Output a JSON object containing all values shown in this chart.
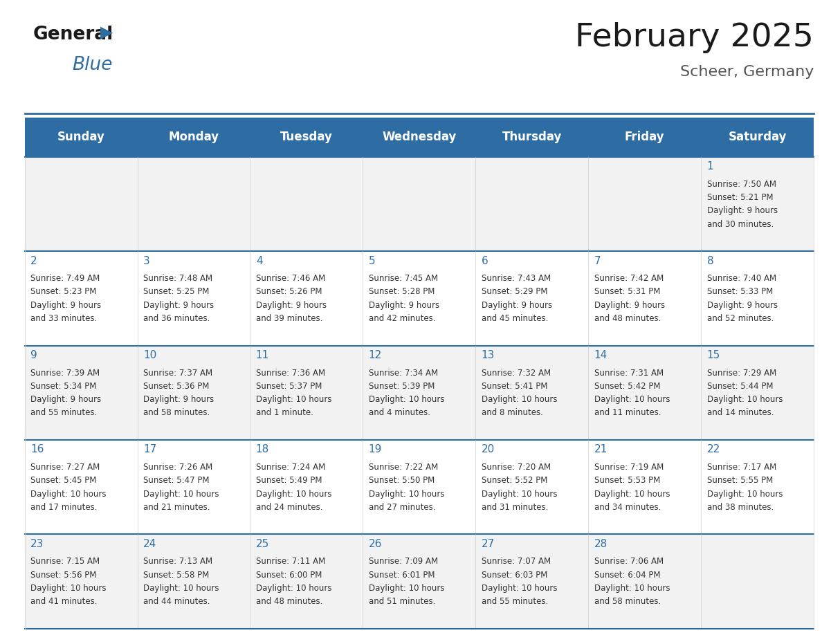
{
  "title": "February 2025",
  "subtitle": "Scheer, Germany",
  "header_bg": "#2E6DA4",
  "header_text_color": "#FFFFFF",
  "days_of_week": [
    "Sunday",
    "Monday",
    "Tuesday",
    "Wednesday",
    "Thursday",
    "Friday",
    "Saturday"
  ],
  "row_bg_odd": "#F2F2F2",
  "row_bg_even": "#FFFFFF",
  "cell_border_color": "#2E6DA4",
  "day_number_color": "#2E6DA4",
  "text_color": "#333333",
  "calendar": [
    [
      {
        "day": null,
        "sunrise": null,
        "sunset": null,
        "daylight": null
      },
      {
        "day": null,
        "sunrise": null,
        "sunset": null,
        "daylight": null
      },
      {
        "day": null,
        "sunrise": null,
        "sunset": null,
        "daylight": null
      },
      {
        "day": null,
        "sunrise": null,
        "sunset": null,
        "daylight": null
      },
      {
        "day": null,
        "sunrise": null,
        "sunset": null,
        "daylight": null
      },
      {
        "day": null,
        "sunrise": null,
        "sunset": null,
        "daylight": null
      },
      {
        "day": 1,
        "sunrise": "7:50 AM",
        "sunset": "5:21 PM",
        "daylight": "9 hours\nand 30 minutes."
      }
    ],
    [
      {
        "day": 2,
        "sunrise": "7:49 AM",
        "sunset": "5:23 PM",
        "daylight": "9 hours\nand 33 minutes."
      },
      {
        "day": 3,
        "sunrise": "7:48 AM",
        "sunset": "5:25 PM",
        "daylight": "9 hours\nand 36 minutes."
      },
      {
        "day": 4,
        "sunrise": "7:46 AM",
        "sunset": "5:26 PM",
        "daylight": "9 hours\nand 39 minutes."
      },
      {
        "day": 5,
        "sunrise": "7:45 AM",
        "sunset": "5:28 PM",
        "daylight": "9 hours\nand 42 minutes."
      },
      {
        "day": 6,
        "sunrise": "7:43 AM",
        "sunset": "5:29 PM",
        "daylight": "9 hours\nand 45 minutes."
      },
      {
        "day": 7,
        "sunrise": "7:42 AM",
        "sunset": "5:31 PM",
        "daylight": "9 hours\nand 48 minutes."
      },
      {
        "day": 8,
        "sunrise": "7:40 AM",
        "sunset": "5:33 PM",
        "daylight": "9 hours\nand 52 minutes."
      }
    ],
    [
      {
        "day": 9,
        "sunrise": "7:39 AM",
        "sunset": "5:34 PM",
        "daylight": "9 hours\nand 55 minutes."
      },
      {
        "day": 10,
        "sunrise": "7:37 AM",
        "sunset": "5:36 PM",
        "daylight": "9 hours\nand 58 minutes."
      },
      {
        "day": 11,
        "sunrise": "7:36 AM",
        "sunset": "5:37 PM",
        "daylight": "10 hours\nand 1 minute."
      },
      {
        "day": 12,
        "sunrise": "7:34 AM",
        "sunset": "5:39 PM",
        "daylight": "10 hours\nand 4 minutes."
      },
      {
        "day": 13,
        "sunrise": "7:32 AM",
        "sunset": "5:41 PM",
        "daylight": "10 hours\nand 8 minutes."
      },
      {
        "day": 14,
        "sunrise": "7:31 AM",
        "sunset": "5:42 PM",
        "daylight": "10 hours\nand 11 minutes."
      },
      {
        "day": 15,
        "sunrise": "7:29 AM",
        "sunset": "5:44 PM",
        "daylight": "10 hours\nand 14 minutes."
      }
    ],
    [
      {
        "day": 16,
        "sunrise": "7:27 AM",
        "sunset": "5:45 PM",
        "daylight": "10 hours\nand 17 minutes."
      },
      {
        "day": 17,
        "sunrise": "7:26 AM",
        "sunset": "5:47 PM",
        "daylight": "10 hours\nand 21 minutes."
      },
      {
        "day": 18,
        "sunrise": "7:24 AM",
        "sunset": "5:49 PM",
        "daylight": "10 hours\nand 24 minutes."
      },
      {
        "day": 19,
        "sunrise": "7:22 AM",
        "sunset": "5:50 PM",
        "daylight": "10 hours\nand 27 minutes."
      },
      {
        "day": 20,
        "sunrise": "7:20 AM",
        "sunset": "5:52 PM",
        "daylight": "10 hours\nand 31 minutes."
      },
      {
        "day": 21,
        "sunrise": "7:19 AM",
        "sunset": "5:53 PM",
        "daylight": "10 hours\nand 34 minutes."
      },
      {
        "day": 22,
        "sunrise": "7:17 AM",
        "sunset": "5:55 PM",
        "daylight": "10 hours\nand 38 minutes."
      }
    ],
    [
      {
        "day": 23,
        "sunrise": "7:15 AM",
        "sunset": "5:56 PM",
        "daylight": "10 hours\nand 41 minutes."
      },
      {
        "day": 24,
        "sunrise": "7:13 AM",
        "sunset": "5:58 PM",
        "daylight": "10 hours\nand 44 minutes."
      },
      {
        "day": 25,
        "sunrise": "7:11 AM",
        "sunset": "6:00 PM",
        "daylight": "10 hours\nand 48 minutes."
      },
      {
        "day": 26,
        "sunrise": "7:09 AM",
        "sunset": "6:01 PM",
        "daylight": "10 hours\nand 51 minutes."
      },
      {
        "day": 27,
        "sunrise": "7:07 AM",
        "sunset": "6:03 PM",
        "daylight": "10 hours\nand 55 minutes."
      },
      {
        "day": 28,
        "sunrise": "7:06 AM",
        "sunset": "6:04 PM",
        "daylight": "10 hours\nand 58 minutes."
      },
      {
        "day": null,
        "sunrise": null,
        "sunset": null,
        "daylight": null
      }
    ]
  ]
}
